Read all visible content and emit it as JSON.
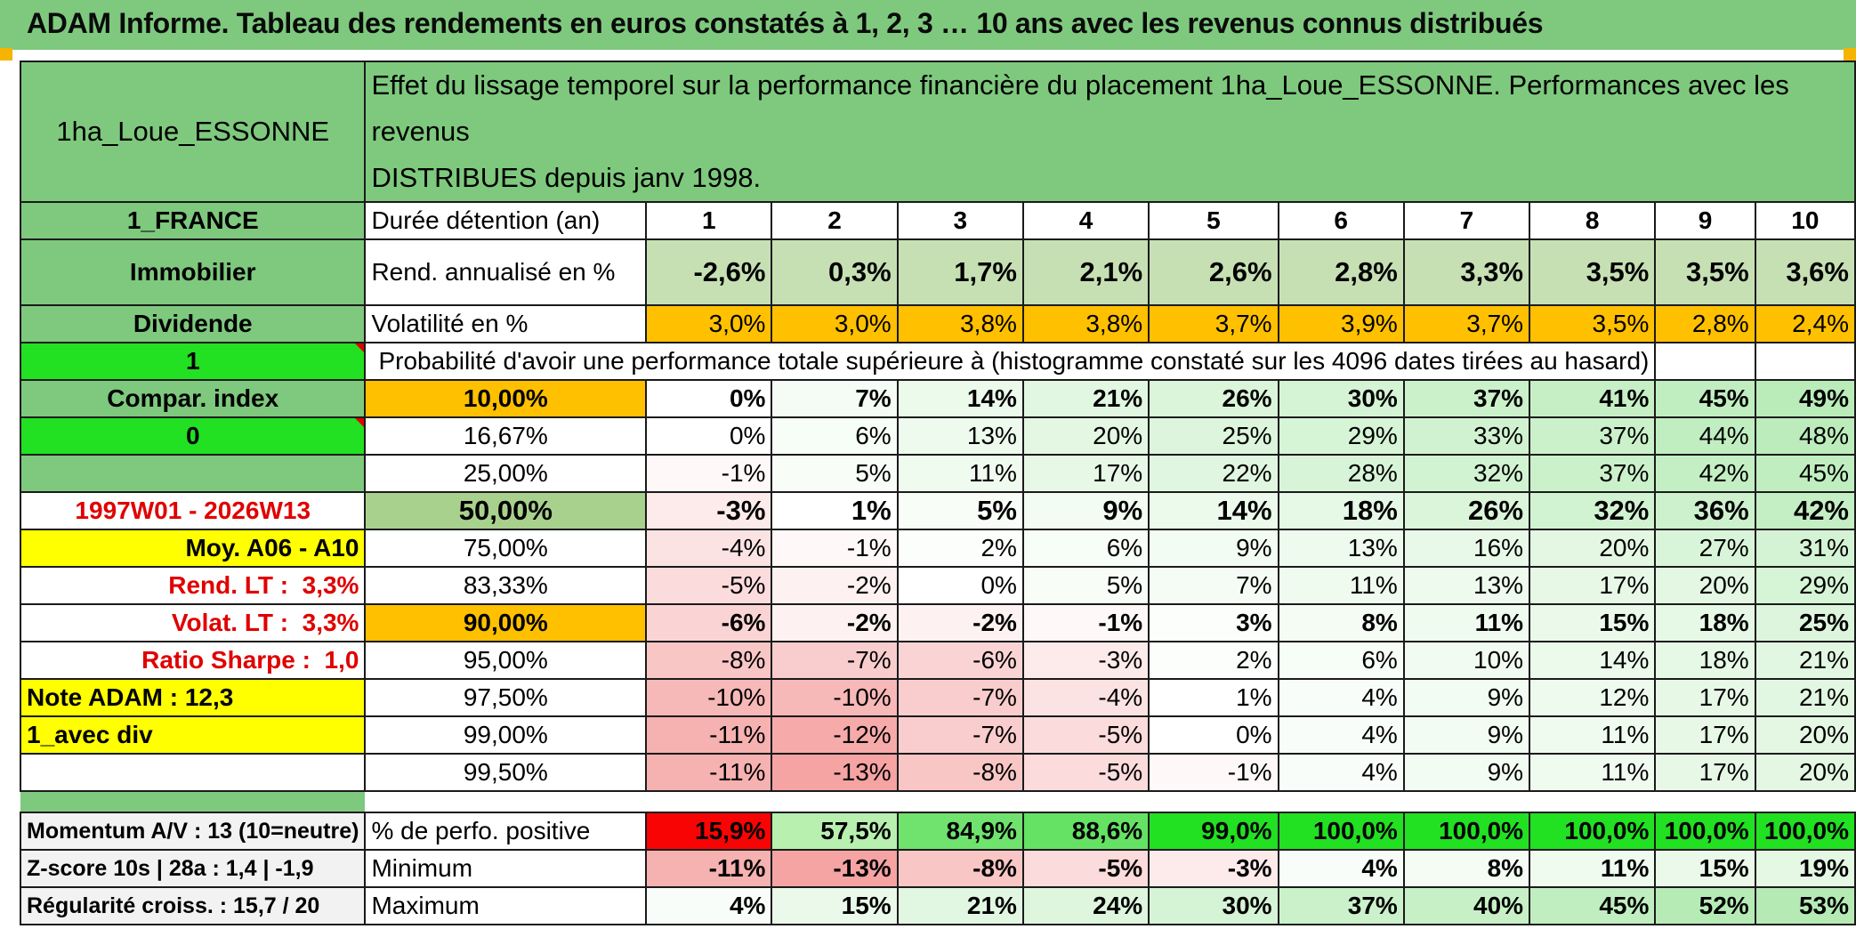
{
  "title": "ADAM Informe. Tableau des rendements en euros constatés à 1, 2, 3 … 10 ans avec les revenus connus distribués",
  "header": {
    "fund": "1ha_Loue_ESSONNE",
    "description_line1": "Effet du lissage temporel sur la performance financière du placement 1ha_Loue_ESSONNE. Performances avec les revenus",
    "description_line2": "DISTRIBUES depuis janv 1998."
  },
  "left_labels": {
    "country": "1_FRANCE",
    "asset": "Immobilier",
    "dividend": "Dividende",
    "one": "1",
    "compar": "Compar. index",
    "zero": "0",
    "period": "1997W01 - 2026W13",
    "moy": "Moy. A06 - A10",
    "rend_lt_label": "Rend. LT :",
    "rend_lt_value": "3,3%",
    "volat_lt_label": "Volat. LT :",
    "volat_lt_value": "3,3%",
    "sharpe_label": "Ratio Sharpe :",
    "sharpe_value": "1,0",
    "note": "Note ADAM : 12,3",
    "avec_div": "1_avec div"
  },
  "table": {
    "duration_label": "Durée détention (an)",
    "years": [
      "1",
      "2",
      "3",
      "4",
      "5",
      "6",
      "7",
      "8",
      "9",
      "10"
    ],
    "rend_label": "Rend. annualisé en %",
    "rend": [
      "-2,6%",
      "0,3%",
      "1,7%",
      "2,1%",
      "2,6%",
      "2,8%",
      "3,3%",
      "3,5%",
      "3,5%",
      "3,6%"
    ],
    "vol_label": "Volatilité en %",
    "vol": [
      "3,0%",
      "3,0%",
      "3,8%",
      "3,8%",
      "3,7%",
      "3,9%",
      "3,7%",
      "3,5%",
      "2,8%",
      "2,4%"
    ],
    "proba_title": "Probabilité d'avoir une performance totale supérieure à (histogramme constaté sur les 4096 dates tirées au hasard)",
    "quantiles": [
      {
        "p": "10,00%",
        "v": [
          "0%",
          "7%",
          "14%",
          "21%",
          "26%",
          "30%",
          "37%",
          "41%",
          "45%",
          "49%"
        ]
      },
      {
        "p": "16,67%",
        "v": [
          "0%",
          "6%",
          "13%",
          "20%",
          "25%",
          "29%",
          "33%",
          "37%",
          "44%",
          "48%"
        ]
      },
      {
        "p": "25,00%",
        "v": [
          "-1%",
          "5%",
          "11%",
          "17%",
          "22%",
          "28%",
          "32%",
          "37%",
          "42%",
          "45%"
        ]
      },
      {
        "p": "50,00%",
        "v": [
          "-3%",
          "1%",
          "5%",
          "9%",
          "14%",
          "18%",
          "26%",
          "32%",
          "36%",
          "42%"
        ]
      },
      {
        "p": "75,00%",
        "v": [
          "-4%",
          "-1%",
          "2%",
          "6%",
          "9%",
          "13%",
          "16%",
          "20%",
          "27%",
          "31%"
        ]
      },
      {
        "p": "83,33%",
        "v": [
          "-5%",
          "-2%",
          "0%",
          "5%",
          "7%",
          "11%",
          "13%",
          "17%",
          "20%",
          "29%"
        ]
      },
      {
        "p": "90,00%",
        "v": [
          "-6%",
          "-2%",
          "-2%",
          "-1%",
          "3%",
          "8%",
          "11%",
          "15%",
          "18%",
          "25%"
        ]
      },
      {
        "p": "95,00%",
        "v": [
          "-8%",
          "-7%",
          "-6%",
          "-3%",
          "2%",
          "6%",
          "10%",
          "14%",
          "18%",
          "21%"
        ]
      },
      {
        "p": "97,50%",
        "v": [
          "-10%",
          "-10%",
          "-7%",
          "-4%",
          "1%",
          "4%",
          "9%",
          "12%",
          "17%",
          "21%"
        ]
      },
      {
        "p": "99,00%",
        "v": [
          "-11%",
          "-12%",
          "-7%",
          "-5%",
          "0%",
          "4%",
          "9%",
          "11%",
          "17%",
          "20%"
        ]
      },
      {
        "p": "99,50%",
        "v": [
          "-11%",
          "-13%",
          "-8%",
          "-5%",
          "-1%",
          "4%",
          "9%",
          "11%",
          "17%",
          "20%"
        ]
      }
    ],
    "bottom": [
      {
        "left": "Momentum A/V : 13 (10=neutre)",
        "label": "% de perfo. positive",
        "v": [
          "15,9%",
          "57,5%",
          "84,9%",
          "88,6%",
          "99,0%",
          "100,0%",
          "100,0%",
          "100,0%",
          "100,0%",
          "100,0%"
        ]
      },
      {
        "left": "Z-score 10s | 28a : 1,4 | -1,9",
        "label": "Minimum",
        "v": [
          "-11%",
          "-13%",
          "-8%",
          "-5%",
          "-3%",
          "4%",
          "8%",
          "11%",
          "15%",
          "19%"
        ]
      },
      {
        "left": "Régularité croiss. : 15,7 / 20",
        "label": "Maximum",
        "v": [
          "4%",
          "15%",
          "21%",
          "24%",
          "30%",
          "37%",
          "40%",
          "45%",
          "52%",
          "53%"
        ]
      }
    ]
  },
  "colors": {
    "title_green": "#7ec97e",
    "light_green": "#c6e0b4",
    "bright_green": "#22e022",
    "orange": "#ffc000",
    "yellow": "#ffff00",
    "red_text": "#e00000",
    "pos_full": "#63d063",
    "neg_full": "#f81010"
  }
}
